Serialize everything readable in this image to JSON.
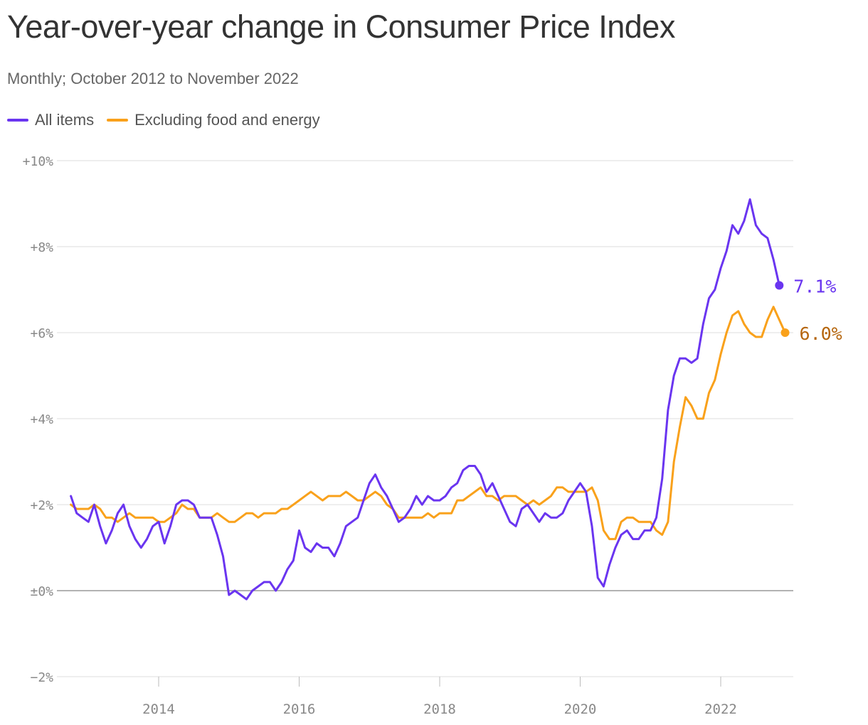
{
  "header": {
    "title": "Year-over-year change in Consumer Price Index",
    "subtitle": "Monthly; October 2012 to November 2022"
  },
  "legend": [
    {
      "label": "All items",
      "color": "#6a35f0"
    },
    {
      "label": "Excluding food and energy",
      "color": "#f9a11b"
    }
  ],
  "chart_data": {
    "type": "line",
    "title": "Year-over-year change in Consumer Price Index",
    "subtitle": "Monthly; October 2012 to November 2022",
    "xlabel": "",
    "ylabel": "",
    "x_start": "2012-10",
    "x_end": "2022-11",
    "x_ticks": [
      {
        "date": "2014-01",
        "label": "2014"
      },
      {
        "date": "2016-01",
        "label": "2016"
      },
      {
        "date": "2018-01",
        "label": "2018"
      },
      {
        "date": "2020-01",
        "label": "2020"
      },
      {
        "date": "2022-01",
        "label": "2022"
      }
    ],
    "ylim": [
      -2,
      10
    ],
    "y_ticks": [
      {
        "value": 10,
        "label": "+10%"
      },
      {
        "value": 8,
        "label": "+8%"
      },
      {
        "value": 6,
        "label": "+6%"
      },
      {
        "value": 4,
        "label": "+4%"
      },
      {
        "value": 2,
        "label": "+2%"
      },
      {
        "value": 0,
        "label": "±0%"
      },
      {
        "value": -2,
        "label": "−2%"
      }
    ],
    "grid": true,
    "legend_position": "top-left",
    "series": [
      {
        "name": "All items",
        "color": "#6a35f0",
        "end_label": "7.1%",
        "end_label_color": "#6a35f0",
        "values": [
          2.2,
          1.8,
          1.7,
          1.6,
          2.0,
          1.5,
          1.1,
          1.4,
          1.8,
          2.0,
          1.5,
          1.2,
          1.0,
          1.2,
          1.5,
          1.6,
          1.1,
          1.5,
          2.0,
          2.1,
          2.1,
          2.0,
          1.7,
          1.7,
          1.7,
          1.3,
          0.8,
          -0.1,
          0.0,
          -0.1,
          -0.2,
          0.0,
          0.1,
          0.2,
          0.2,
          0.0,
          0.2,
          0.5,
          0.7,
          1.4,
          1.0,
          0.9,
          1.1,
          1.0,
          1.0,
          0.8,
          1.1,
          1.5,
          1.6,
          1.7,
          2.1,
          2.5,
          2.7,
          2.4,
          2.2,
          1.9,
          1.6,
          1.7,
          1.9,
          2.2,
          2.0,
          2.2,
          2.1,
          2.1,
          2.2,
          2.4,
          2.5,
          2.8,
          2.9,
          2.9,
          2.7,
          2.3,
          2.5,
          2.2,
          1.9,
          1.6,
          1.5,
          1.9,
          2.0,
          1.8,
          1.6,
          1.8,
          1.7,
          1.7,
          1.8,
          2.1,
          2.3,
          2.5,
          2.3,
          1.5,
          0.3,
          0.1,
          0.6,
          1.0,
          1.3,
          1.4,
          1.2,
          1.2,
          1.4,
          1.4,
          1.7,
          2.6,
          4.2,
          5.0,
          5.4,
          5.4,
          5.3,
          5.4,
          6.2,
          6.8,
          7.0,
          7.5,
          7.9,
          8.5,
          8.3,
          8.6,
          9.1,
          8.5,
          8.3,
          8.2,
          7.7,
          7.1
        ]
      },
      {
        "name": "Excluding food and energy",
        "color": "#f9a11b",
        "end_label": "6.0%",
        "end_label_color": "#b5650c",
        "values": [
          2.0,
          1.9,
          1.9,
          1.9,
          2.0,
          1.9,
          1.7,
          1.7,
          1.6,
          1.7,
          1.8,
          1.7,
          1.7,
          1.7,
          1.7,
          1.6,
          1.6,
          1.7,
          1.8,
          2.0,
          1.9,
          1.9,
          1.7,
          1.7,
          1.7,
          1.8,
          1.7,
          1.6,
          1.6,
          1.7,
          1.8,
          1.8,
          1.7,
          1.8,
          1.8,
          1.8,
          1.9,
          1.9,
          2.0,
          2.1,
          2.2,
          2.3,
          2.2,
          2.1,
          2.2,
          2.2,
          2.2,
          2.3,
          2.2,
          2.1,
          2.1,
          2.2,
          2.3,
          2.2,
          2.0,
          1.9,
          1.7,
          1.7,
          1.7,
          1.7,
          1.7,
          1.8,
          1.7,
          1.8,
          1.8,
          1.8,
          2.1,
          2.1,
          2.2,
          2.3,
          2.4,
          2.2,
          2.2,
          2.1,
          2.2,
          2.2,
          2.2,
          2.1,
          2.0,
          2.1,
          2.0,
          2.1,
          2.2,
          2.4,
          2.4,
          2.3,
          2.3,
          2.3,
          2.3,
          2.4,
          2.1,
          1.4,
          1.2,
          1.2,
          1.6,
          1.7,
          1.7,
          1.6,
          1.6,
          1.6,
          1.4,
          1.3,
          1.6,
          3.0,
          3.8,
          4.5,
          4.3,
          4.0,
          4.0,
          4.6,
          4.9,
          5.5,
          6.0,
          6.4,
          6.5,
          6.2,
          6.0,
          5.9,
          5.9,
          6.3,
          6.6,
          6.3,
          6.0
        ]
      }
    ]
  }
}
